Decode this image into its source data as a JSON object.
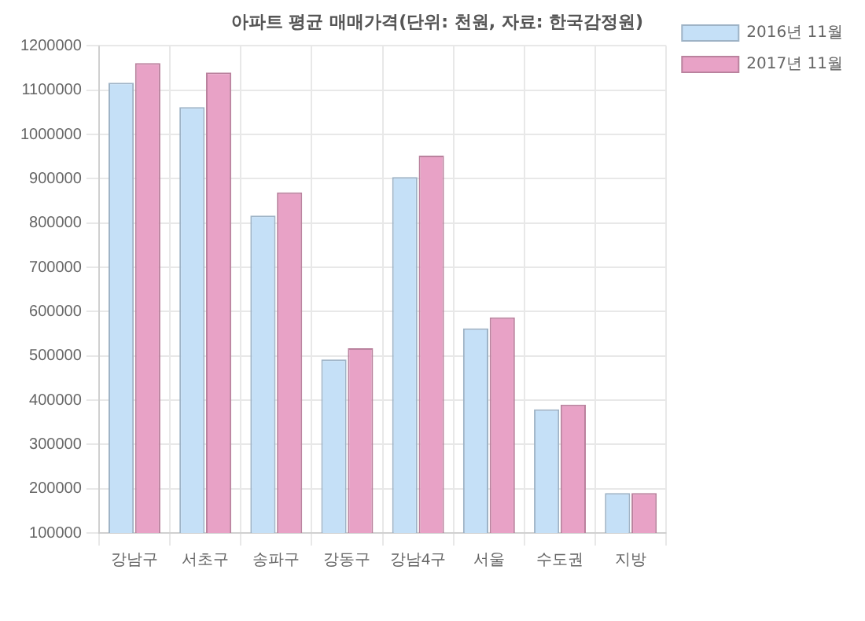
{
  "chart_data": {
    "type": "bar",
    "title": "아파트 평균 매매가격(단위: 천원, 자료: 한국감정원)",
    "categories": [
      "강남구",
      "서초구",
      "송파구",
      "강동구",
      "강남4구",
      "서울",
      "수도권",
      "지방"
    ],
    "series": [
      {
        "name": "2016년 11월",
        "color": "#c5e0f7",
        "values": [
          1117000,
          1062000,
          817000,
          492000,
          904000,
          562000,
          379000,
          190000
        ]
      },
      {
        "name": "2017년 11월",
        "color": "#e8a2c6",
        "values": [
          1161000,
          1140000,
          869000,
          517000,
          952000,
          587000,
          390000,
          190000
        ]
      }
    ],
    "ylim": [
      100000,
      1200000
    ],
    "yticks": [
      100000,
      200000,
      300000,
      400000,
      500000,
      600000,
      700000,
      800000,
      900000,
      1000000,
      1100000,
      1200000
    ],
    "grid": true,
    "legend": "top right"
  }
}
